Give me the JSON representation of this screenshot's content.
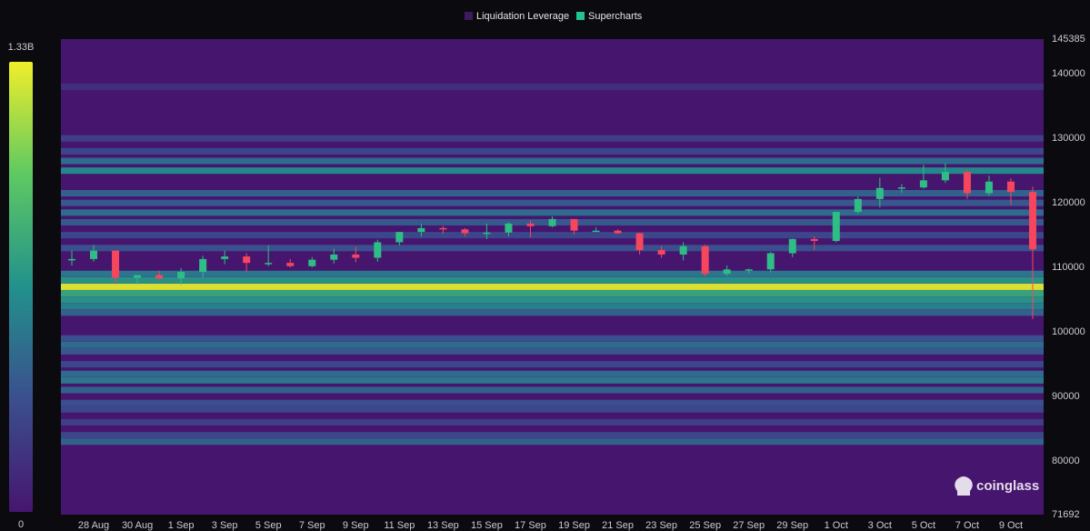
{
  "chart_data": {
    "type": "liquidation-heatmap",
    "legend": [
      "Liquidation Leverage",
      "Supercharts"
    ],
    "legend_colors": [
      "#3d1a5e",
      "#22c38e"
    ],
    "watermark": "coinglass",
    "colorscale": [
      "#46166f",
      "#3b4f8e",
      "#22918c",
      "#5ec962",
      "#f0ee2a"
    ],
    "clim": [
      0,
      1330000000
    ],
    "cticks": [
      0,
      {
        "value": 1330000000,
        "label": "1.33B"
      }
    ],
    "ylim": [
      71692,
      145385
    ],
    "yticks": [
      71692,
      80000,
      90000,
      100000,
      110000,
      120000,
      130000,
      140000,
      145385
    ],
    "categories": [
      null,
      "28 Aug",
      null,
      "30 Aug",
      null,
      "1 Sep",
      null,
      "3 Sep",
      null,
      "5 Sep",
      null,
      "7 Sep",
      null,
      "9 Sep",
      null,
      "11 Sep",
      null,
      "13 Sep",
      null,
      "15 Sep",
      null,
      "17 Sep",
      null,
      "19 Sep",
      null,
      "21 Sep",
      null,
      "23 Sep",
      null,
      "25 Sep",
      null,
      "27 Sep",
      null,
      "29 Sep",
      null,
      "1 Oct",
      null,
      "3 Oct",
      null,
      "5 Oct",
      null,
      "7 Oct",
      null,
      "9 Oct",
      null
    ],
    "up_color": "#2ebd85",
    "down_color": "#f6465d",
    "candles": {
      "open": [
        111300,
        111300,
        112600,
        108400,
        108800,
        108300,
        109300,
        111300,
        111700,
        110700,
        110700,
        110200,
        111200,
        112000,
        111500,
        113900,
        115500,
        116100,
        115900,
        115300,
        115400,
        116800,
        116400,
        117500,
        115700,
        115700,
        115300,
        112700,
        112000,
        113300,
        109000,
        109700,
        109700,
        112200,
        114400,
        114100,
        118600,
        120600,
        122300,
        122400,
        123500,
        124800,
        121500,
        123300,
        121700
      ],
      "high": [
        112600,
        113500,
        112700,
        108900,
        109500,
        109900,
        111800,
        112600,
        112200,
        113400,
        111300,
        111600,
        112900,
        113200,
        114300,
        115500,
        116800,
        116400,
        116100,
        116800,
        117000,
        117300,
        117900,
        117500,
        116200,
        115900,
        115400,
        113300,
        113900,
        113500,
        110300,
        109800,
        112400,
        114500,
        114800,
        118600,
        121000,
        123900,
        122900,
        125900,
        126200,
        125100,
        124200,
        123800,
        122500
      ],
      "low": [
        110300,
        110900,
        107400,
        107400,
        108100,
        107300,
        108400,
        110500,
        109300,
        110200,
        110000,
        110000,
        110600,
        110800,
        110900,
        113400,
        114800,
        115200,
        114800,
        114400,
        114800,
        114700,
        116200,
        115100,
        115500,
        115200,
        112000,
        111500,
        111100,
        108600,
        108700,
        109100,
        109200,
        111600,
        112700,
        113900,
        118300,
        119300,
        121600,
        122200,
        123100,
        120600,
        121100,
        119700,
        102000
      ],
      "close": [
        111300,
        112600,
        108400,
        108800,
        108300,
        109300,
        111300,
        111700,
        110700,
        110700,
        110200,
        111200,
        112000,
        111500,
        113900,
        115500,
        116100,
        115900,
        115300,
        115400,
        116800,
        116400,
        117500,
        115700,
        115700,
        115300,
        112700,
        112000,
        113300,
        109000,
        109700,
        109700,
        112200,
        114400,
        114100,
        118600,
        120600,
        122300,
        122400,
        123500,
        124800,
        121500,
        123300,
        121700,
        112800
      ]
    },
    "heat_levels": [
      83000,
      84000,
      86000,
      88000,
      89000,
      91000,
      92500,
      93500,
      95000,
      97000,
      98000,
      99000,
      103000,
      104000,
      105000,
      106000,
      107000,
      108000,
      109000,
      113000,
      115000,
      117000,
      118500,
      120000,
      121500,
      125000,
      126500,
      128000,
      130000,
      138000
    ],
    "heat_values": [
      450000000,
      300000000,
      250000000,
      300000000,
      350000000,
      450000000,
      550000000,
      500000000,
      300000000,
      400000000,
      500000000,
      350000000,
      450000000,
      600000000,
      700000000,
      800000000,
      1300000000,
      700000000,
      550000000,
      350000000,
      300000000,
      400000000,
      500000000,
      400000000,
      450000000,
      650000000,
      500000000,
      300000000,
      250000000,
      150000000
    ]
  }
}
